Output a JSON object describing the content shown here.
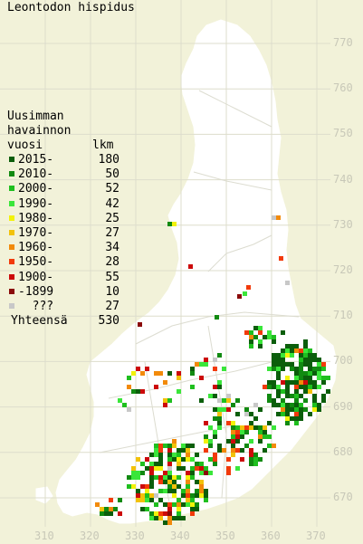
{
  "title": "Leontodon hispidus",
  "legend": {
    "header": [
      "Uusimman",
      "havainnon",
      "vuosi",
      "lkm"
    ],
    "items": [
      {
        "label": "2015-",
        "count": "180",
        "color": "#0b5e0b"
      },
      {
        "label": "2010-",
        "count": "50",
        "color": "#118a11"
      },
      {
        "label": "2000-",
        "count": "52",
        "color": "#1fbf1f"
      },
      {
        "label": "1990-",
        "count": "42",
        "color": "#3ae63a"
      },
      {
        "label": "1980-",
        "count": "25",
        "color": "#f2f20a"
      },
      {
        "label": "1970-",
        "count": "27",
        "color": "#f2c20a"
      },
      {
        "label": "1960-",
        "count": "34",
        "color": "#f28a0a"
      },
      {
        "label": "1950-",
        "count": "28",
        "color": "#f23a0a"
      },
      {
        "label": "1900-",
        "count": "55",
        "color": "#cc0a0a"
      },
      {
        "label": "-1899",
        "count": "10",
        "color": "#8a0a0a"
      },
      {
        "label": "???",
        "count": "27",
        "color": "#c8c8c8"
      }
    ],
    "total_label": "Yhteensä",
    "total_count": "530"
  },
  "y_axis": [
    "770",
    "760",
    "750",
    "740",
    "730",
    "720",
    "710",
    "700",
    "690",
    "680",
    "670"
  ],
  "x_axis": [
    "310",
    "320",
    "330",
    "340",
    "350",
    "360",
    "370"
  ],
  "colors": {
    "background": "#f2f2d9",
    "land": "#ffffff",
    "grid": "#ddddcc",
    "axis_text": "#c8c8b8"
  }
}
